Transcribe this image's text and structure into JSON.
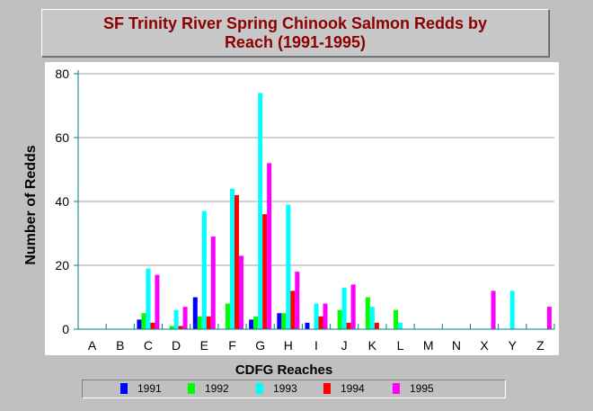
{
  "chart_data": {
    "type": "bar",
    "title_line1": "SF Trinity River Spring Chinook Salmon Redds by",
    "title_line2": "Reach (1991-1995)",
    "xlabel": "CDFG Reaches",
    "ylabel": "Number of Redds",
    "ylim": [
      0,
      80
    ],
    "yticks": [
      0,
      20,
      40,
      60,
      80
    ],
    "grid": true,
    "legend_placement": "bottom",
    "categories": [
      "A",
      "B",
      "C",
      "D",
      "E",
      "F",
      "G",
      "H",
      "I",
      "J",
      "K",
      "L",
      "M",
      "N",
      "X",
      "Y",
      "Z"
    ],
    "series": [
      {
        "name": "1991",
        "color": "#0000ff",
        "values": [
          0,
          0,
          3,
          0,
          10,
          0,
          3,
          5,
          2,
          0,
          0,
          0,
          0,
          0,
          0,
          0,
          0
        ]
      },
      {
        "name": "1992",
        "color": "#00ff00",
        "values": [
          0,
          0,
          5,
          1,
          4,
          8,
          4,
          5,
          0,
          6,
          10,
          6,
          0,
          0,
          0,
          0,
          0
        ]
      },
      {
        "name": "1993",
        "color": "#00ffff",
        "values": [
          0,
          0,
          19,
          6,
          37,
          44,
          74,
          39,
          8,
          13,
          7,
          2,
          0,
          0,
          0,
          12,
          0
        ]
      },
      {
        "name": "1994",
        "color": "#ff0000",
        "values": [
          0,
          0,
          2,
          1,
          4,
          42,
          36,
          12,
          4,
          2,
          2,
          0,
          0,
          0,
          0,
          0,
          0
        ]
      },
      {
        "name": "1995",
        "color": "#ff00ff",
        "values": [
          0,
          0,
          17,
          7,
          29,
          23,
          52,
          18,
          8,
          14,
          0,
          0,
          0,
          0,
          12,
          0,
          7
        ]
      }
    ]
  }
}
